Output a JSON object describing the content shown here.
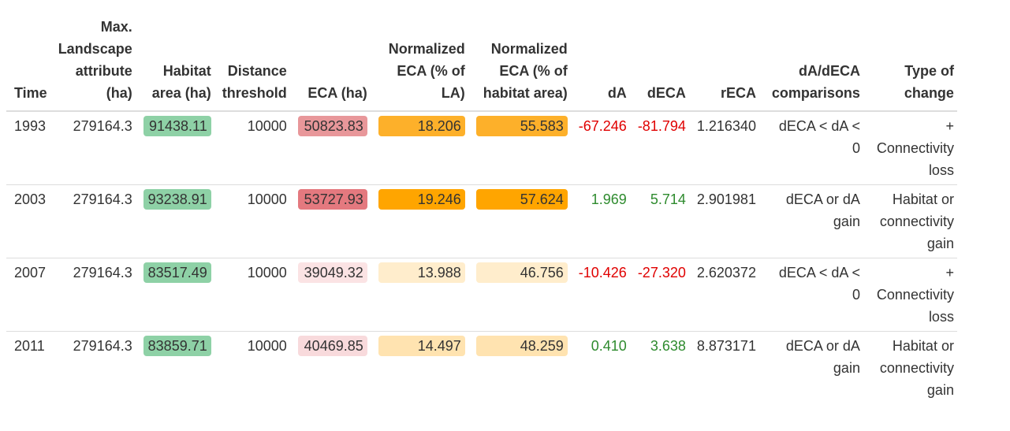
{
  "headers": {
    "time": "Time",
    "max_la": [
      "Max.",
      "Landscape",
      "attribute",
      "(ha)"
    ],
    "habitat": [
      "Habitat",
      "area (ha)"
    ],
    "distance": [
      "Distance",
      "threshold"
    ],
    "eca": "ECA (ha)",
    "norm_la": [
      "Normalized",
      "ECA (% of",
      "LA)"
    ],
    "norm_hab": [
      "Normalized",
      "ECA (% of",
      "habitat area)"
    ],
    "da": "dA",
    "deca": "dECA",
    "reca": "rECA",
    "comparisons": [
      "dA/dECA",
      "comparisons"
    ],
    "type": [
      "Type of",
      "change"
    ]
  },
  "rows": [
    {
      "time": "1993",
      "max_la": "279164.3",
      "habitat": "91438.11",
      "distance": "10000",
      "eca": "50823.83",
      "norm_la": "18.206",
      "norm_hab": "55.583",
      "da": "-67.246",
      "deca": "-81.794",
      "reca": "1.216340",
      "comparison": "dECA < dA < 0",
      "type": "+ Connectivity loss"
    },
    {
      "time": "2003",
      "max_la": "279164.3",
      "habitat": "93238.91",
      "distance": "10000",
      "eca": "53727.93",
      "norm_la": "19.246",
      "norm_hab": "57.624",
      "da": "1.969",
      "deca": "5.714",
      "reca": "2.901981",
      "comparison": "dECA or dA gain",
      "type": "Habitat or connectivity gain"
    },
    {
      "time": "2007",
      "max_la": "279164.3",
      "habitat": "83517.49",
      "distance": "10000",
      "eca": "39049.32",
      "norm_la": "13.988",
      "norm_hab": "46.756",
      "da": "-10.426",
      "deca": "-27.320",
      "reca": "2.620372",
      "comparison": "dECA < dA < 0",
      "type": "+ Connectivity loss"
    },
    {
      "time": "2011",
      "max_la": "279164.3",
      "habitat": "83859.71",
      "distance": "10000",
      "eca": "40469.85",
      "norm_la": "14.497",
      "norm_hab": "48.259",
      "da": "0.410",
      "deca": "3.638",
      "reca": "8.873171",
      "comparison": "dECA or dA gain",
      "type": "Habitat or connectivity gain"
    }
  ],
  "colors": {
    "habitat_bg": "#8ed1a6",
    "eca_bg": [
      "#e8979a",
      "#e4797f",
      "#fbe3e4",
      "#f8dadc"
    ],
    "norm_la_bg": [
      "#fdb02a",
      "#ffa500",
      "#ffedcc",
      "#ffe3b0"
    ],
    "norm_hab_bg": [
      "#fdb02a",
      "#ffa500",
      "#ffedcc",
      "#ffe3b0"
    ],
    "negative_text": "#e00000",
    "positive_text": "#2e8b2e"
  }
}
